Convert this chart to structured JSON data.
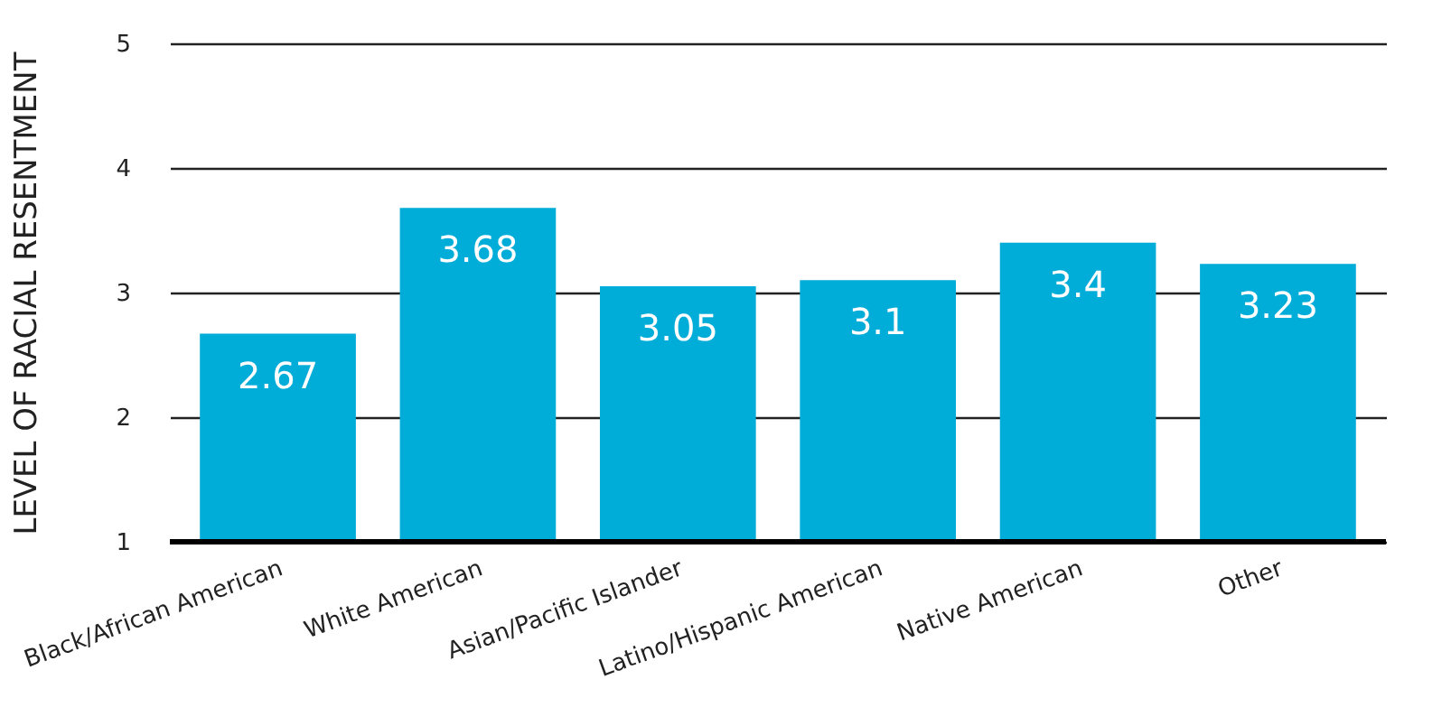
{
  "chart_data": {
    "type": "bar",
    "ylabel": "LEVEL OF RACIAL RESENTMENT",
    "categories": [
      "Black/African American",
      "White American",
      "Asian/Pacific Islander",
      "Latino/Hispanic American",
      "Native American",
      "Other"
    ],
    "values": [
      2.67,
      3.68,
      3.05,
      3.1,
      3.4,
      3.23
    ],
    "color": "#00acd8",
    "ylim": [
      1,
      5
    ],
    "yticks": [
      1,
      2,
      3,
      4,
      5
    ],
    "grid": "y",
    "data_labels": true
  }
}
